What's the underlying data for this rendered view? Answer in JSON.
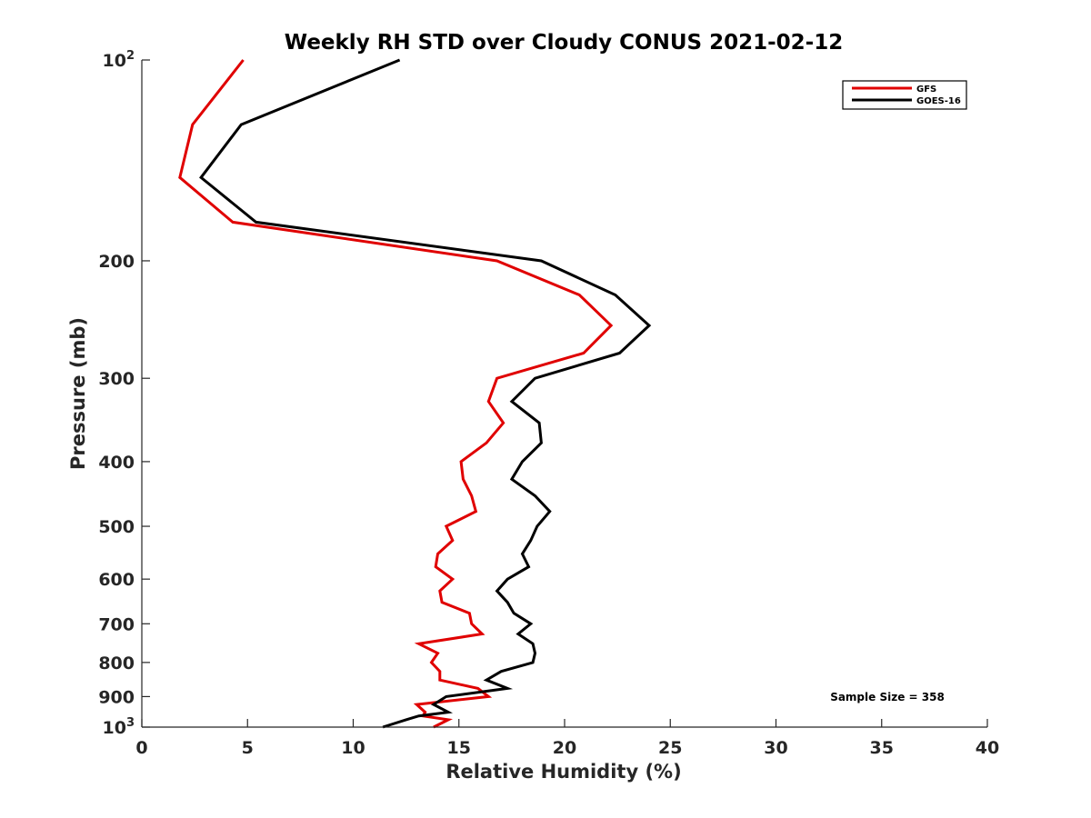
{
  "chart_data": {
    "type": "line",
    "title": "Weekly RH STD over Cloudy CONUS 2021-02-12",
    "xlabel": "Relative Humidity (%)",
    "ylabel": "Pressure (mb)",
    "xlim": [
      0,
      40
    ],
    "ylim": [
      1000,
      100
    ],
    "y_scale": "log",
    "x_ticks": [
      "0",
      "5",
      "10",
      "15",
      "20",
      "25",
      "30",
      "35",
      "40"
    ],
    "x_tick_values": [
      0,
      5,
      10,
      15,
      20,
      25,
      30,
      35,
      40
    ],
    "y_ticks": [
      {
        "value": 100,
        "base": "10",
        "exp": "2"
      },
      {
        "value": 200,
        "label": "200"
      },
      {
        "value": 300,
        "label": "300"
      },
      {
        "value": 400,
        "label": "400"
      },
      {
        "value": 500,
        "label": "500"
      },
      {
        "value": 600,
        "label": "600"
      },
      {
        "value": 700,
        "label": "700"
      },
      {
        "value": 800,
        "label": "800"
      },
      {
        "value": 900,
        "label": "900"
      },
      {
        "value": 1000,
        "base": "10",
        "exp": "3"
      }
    ],
    "grid": false,
    "legend_position": "top-right",
    "annotation": "Sample Size = 358",
    "series": [
      {
        "name": "GFS",
        "color": "#e00000",
        "points": [
          [
            4.8,
            100
          ],
          [
            2.4,
            125
          ],
          [
            1.8,
            150
          ],
          [
            4.3,
            175
          ],
          [
            16.8,
            200
          ],
          [
            20.7,
            225
          ],
          [
            22.2,
            250
          ],
          [
            20.9,
            275
          ],
          [
            16.8,
            300
          ],
          [
            16.4,
            325
          ],
          [
            17.1,
            350
          ],
          [
            16.3,
            375
          ],
          [
            15.1,
            400
          ],
          [
            15.2,
            425
          ],
          [
            15.6,
            450
          ],
          [
            15.8,
            475
          ],
          [
            14.4,
            500
          ],
          [
            14.7,
            525
          ],
          [
            14.0,
            550
          ],
          [
            13.9,
            575
          ],
          [
            14.7,
            600
          ],
          [
            14.1,
            625
          ],
          [
            14.2,
            650
          ],
          [
            15.5,
            675
          ],
          [
            15.6,
            700
          ],
          [
            16.1,
            725
          ],
          [
            13.1,
            750
          ],
          [
            14.0,
            775
          ],
          [
            13.7,
            800
          ],
          [
            14.1,
            825
          ],
          [
            14.1,
            850
          ],
          [
            15.9,
            875
          ],
          [
            16.4,
            900
          ],
          [
            13.0,
            925
          ],
          [
            13.4,
            950
          ],
          [
            13.3,
            962
          ],
          [
            14.5,
            975
          ],
          [
            13.8,
            1000
          ]
        ]
      },
      {
        "name": "GOES-16",
        "color": "#000000",
        "points": [
          [
            12.2,
            100
          ],
          [
            4.7,
            125
          ],
          [
            2.8,
            150
          ],
          [
            5.4,
            175
          ],
          [
            18.9,
            200
          ],
          [
            22.4,
            225
          ],
          [
            24.0,
            250
          ],
          [
            22.6,
            275
          ],
          [
            18.6,
            300
          ],
          [
            17.5,
            325
          ],
          [
            18.8,
            350
          ],
          [
            18.9,
            375
          ],
          [
            18.0,
            400
          ],
          [
            17.5,
            425
          ],
          [
            18.6,
            450
          ],
          [
            19.3,
            475
          ],
          [
            18.7,
            500
          ],
          [
            18.4,
            525
          ],
          [
            18.0,
            550
          ],
          [
            18.3,
            575
          ],
          [
            17.3,
            600
          ],
          [
            16.8,
            625
          ],
          [
            17.3,
            650
          ],
          [
            17.6,
            675
          ],
          [
            18.4,
            700
          ],
          [
            17.8,
            725
          ],
          [
            18.5,
            750
          ],
          [
            18.6,
            775
          ],
          [
            18.5,
            800
          ],
          [
            17.0,
            825
          ],
          [
            16.3,
            850
          ],
          [
            17.3,
            875
          ],
          [
            14.4,
            900
          ],
          [
            13.8,
            925
          ],
          [
            14.5,
            950
          ],
          [
            13.1,
            962
          ],
          [
            12.5,
            975
          ],
          [
            11.4,
            1000
          ]
        ]
      }
    ]
  }
}
